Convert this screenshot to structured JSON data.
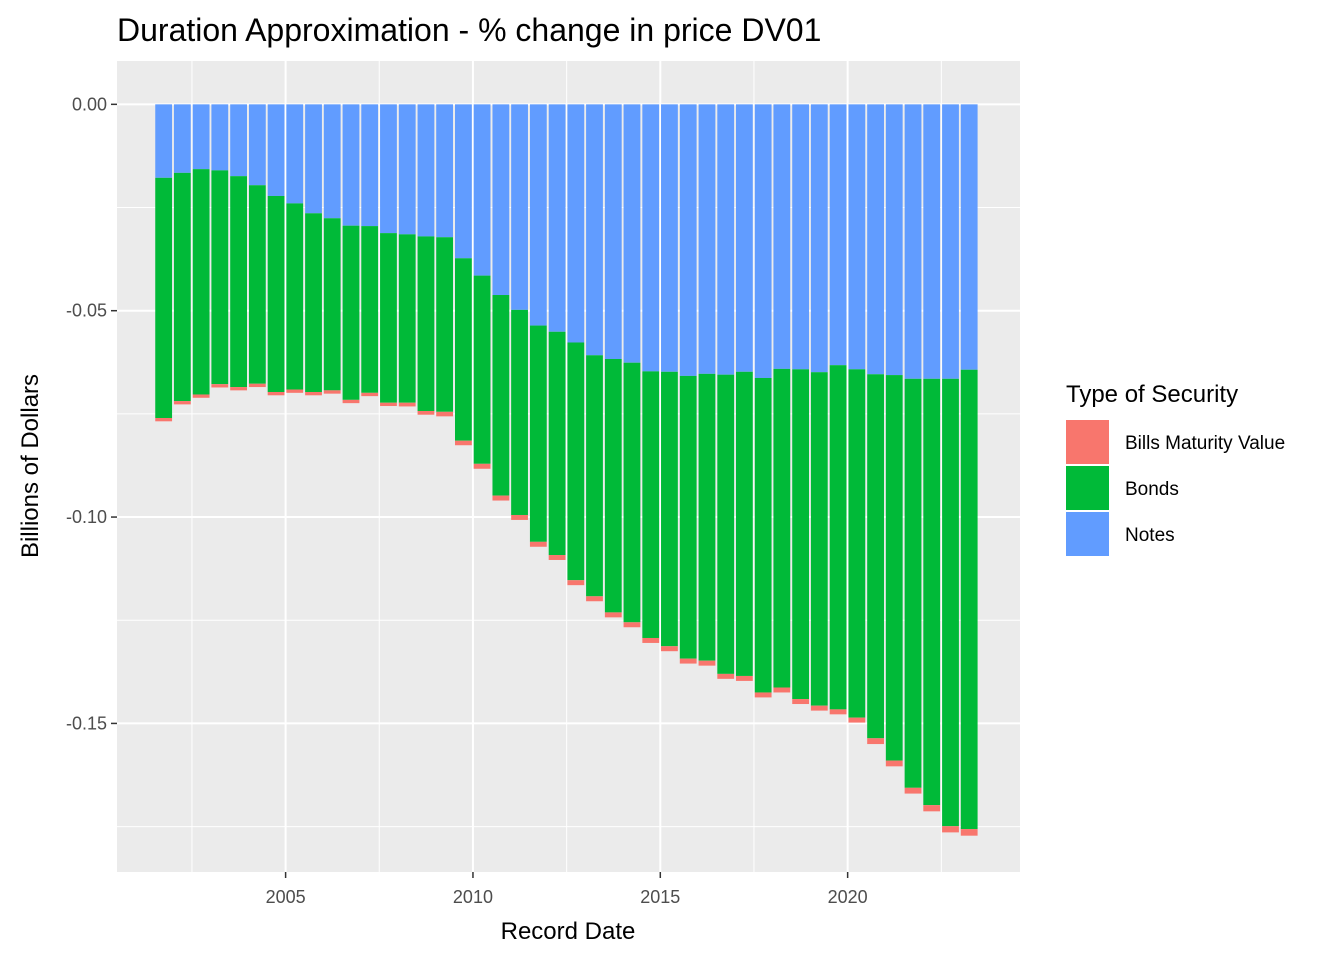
{
  "chart_data": {
    "type": "bar",
    "stacked": true,
    "title": "Duration Approximation - % change in price DV01",
    "xlabel": "Record Date",
    "ylabel": "Billions of Dollars",
    "xlim": [
      2000.5,
      2024.6
    ],
    "ylim": [
      -0.186,
      0.0105
    ],
    "x_ticks": [
      {
        "value": 2005,
        "label": "2005"
      },
      {
        "value": 2010,
        "label": "2010"
      },
      {
        "value": 2015,
        "label": "2015"
      },
      {
        "value": 2020,
        "label": "2020"
      }
    ],
    "y_ticks": [
      {
        "value": 0,
        "label": "0.00"
      },
      {
        "value": -0.05,
        "label": "-0.05"
      },
      {
        "value": -0.1,
        "label": "-0.10"
      },
      {
        "value": -0.15,
        "label": "-0.15"
      }
    ],
    "x": [
      "2001-09-30",
      "2002-03-31",
      "2002-09-30",
      "2003-03-31",
      "2003-09-30",
      "2004-03-31",
      "2004-09-30",
      "2005-03-31",
      "2005-09-30",
      "2006-03-31",
      "2006-09-30",
      "2007-03-31",
      "2007-09-30",
      "2008-03-31",
      "2008-09-30",
      "2009-03-31",
      "2009-09-30",
      "2010-03-31",
      "2010-09-30",
      "2011-03-31",
      "2011-09-30",
      "2012-03-31",
      "2012-09-30",
      "2013-03-31",
      "2013-09-30",
      "2014-03-31",
      "2014-09-30",
      "2015-03-31",
      "2015-09-30",
      "2016-03-31",
      "2016-09-30",
      "2017-03-31",
      "2017-09-30",
      "2018-03-31",
      "2018-09-30",
      "2019-03-31",
      "2019-09-30",
      "2020-03-31",
      "2020-09-30",
      "2021-03-31",
      "2021-09-30",
      "2022-03-31",
      "2022-09-30",
      "2023-03-31"
    ],
    "series": [
      {
        "name": "Notes",
        "color": "#619CFF",
        "values": [
          -0.0178,
          -0.0166,
          -0.0157,
          -0.016,
          -0.0174,
          -0.0196,
          -0.0222,
          -0.024,
          -0.0264,
          -0.0276,
          -0.0294,
          -0.0295,
          -0.0312,
          -0.0315,
          -0.032,
          -0.0322,
          -0.0373,
          -0.0415,
          -0.0462,
          -0.0498,
          -0.0536,
          -0.0551,
          -0.0577,
          -0.0608,
          -0.0617,
          -0.0626,
          -0.0647,
          -0.0648,
          -0.0658,
          -0.0653,
          -0.0655,
          -0.0648,
          -0.0663,
          -0.0641,
          -0.0642,
          -0.0649,
          -0.0632,
          -0.0642,
          -0.0654,
          -0.0656,
          -0.0665,
          -0.0665,
          -0.0665,
          -0.0643
        ]
      },
      {
        "name": "Bonds",
        "color": "#00BA38",
        "values": [
          -0.0582,
          -0.0553,
          -0.0546,
          -0.0518,
          -0.0511,
          -0.0481,
          -0.0475,
          -0.0451,
          -0.0433,
          -0.0417,
          -0.0422,
          -0.0404,
          -0.0411,
          -0.0408,
          -0.0423,
          -0.0423,
          -0.0442,
          -0.0456,
          -0.0486,
          -0.0497,
          -0.0524,
          -0.0541,
          -0.0576,
          -0.0584,
          -0.0614,
          -0.0629,
          -0.0646,
          -0.0665,
          -0.0685,
          -0.0695,
          -0.0725,
          -0.0737,
          -0.0762,
          -0.0772,
          -0.0799,
          -0.0808,
          -0.0834,
          -0.0844,
          -0.0882,
          -0.0934,
          -0.0991,
          -0.1033,
          -0.1084,
          -0.1113
        ]
      },
      {
        "name": "Bills Maturity Value",
        "color": "#F8766D",
        "values": [
          -0.0008,
          -0.0008,
          -0.0008,
          -0.0008,
          -0.0008,
          -0.0008,
          -0.0008,
          -0.0008,
          -0.0008,
          -0.0008,
          -0.0008,
          -0.0008,
          -0.0008,
          -0.0009,
          -0.0009,
          -0.0011,
          -0.0011,
          -0.0012,
          -0.0012,
          -0.0012,
          -0.0012,
          -0.0012,
          -0.0012,
          -0.0012,
          -0.0012,
          -0.0012,
          -0.0012,
          -0.0012,
          -0.0012,
          -0.0012,
          -0.0012,
          -0.0012,
          -0.0012,
          -0.0012,
          -0.0012,
          -0.0012,
          -0.0012,
          -0.0012,
          -0.0014,
          -0.0014,
          -0.0014,
          -0.0015,
          -0.0015,
          -0.0016
        ]
      }
    ],
    "legend": {
      "title": "Type of Security",
      "entries": [
        {
          "label": "Bills Maturity Value",
          "color": "#F8766D"
        },
        {
          "label": "Bonds",
          "color": "#00BA38"
        },
        {
          "label": "Notes",
          "color": "#619CFF"
        }
      ],
      "placement": "right"
    },
    "panel_background": "#EBEBEB",
    "grid": true,
    "grid_color": "#FFFFFF"
  }
}
